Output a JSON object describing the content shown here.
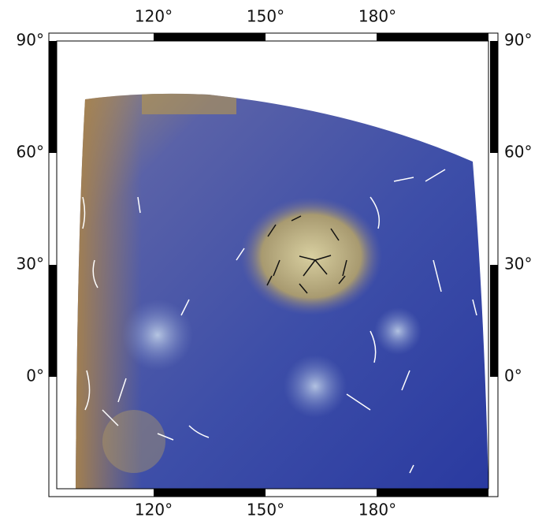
{
  "map": {
    "lon_ticks": [
      {
        "value": 120,
        "label": "120°"
      },
      {
        "value": 150,
        "label": "150°"
      },
      {
        "value": 180,
        "label": "180°"
      }
    ],
    "lat_ticks": [
      {
        "value": 90,
        "label": "90°"
      },
      {
        "value": 60,
        "label": "60°"
      },
      {
        "value": 30,
        "label": "30°"
      },
      {
        "value": 0,
        "label": "0°"
      }
    ]
  }
}
